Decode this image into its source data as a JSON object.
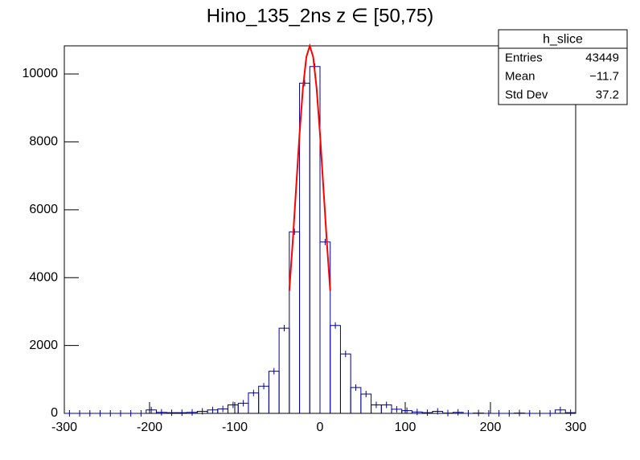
{
  "chart_data": {
    "type": "histogram",
    "title": "Hino_135_2ns z  ∈ [50,75)",
    "bins": [
      -300,
      -288,
      -276,
      -264,
      -252,
      -240,
      -228,
      -216,
      -204,
      -192,
      -180,
      -168,
      -156,
      -144,
      -132,
      -120,
      -108,
      -96,
      -84,
      -72,
      -60,
      -48,
      -36,
      -24,
      -12,
      0,
      12,
      24,
      36,
      48,
      60,
      72,
      84,
      96,
      108,
      120,
      132,
      144,
      156,
      168,
      180,
      192,
      204,
      216,
      228,
      240,
      252,
      264,
      276,
      288,
      300
    ],
    "values": [
      0,
      0,
      0,
      0,
      0,
      0,
      0,
      0,
      100,
      30,
      20,
      20,
      30,
      60,
      100,
      130,
      250,
      300,
      600,
      800,
      1240,
      2510,
      5350,
      9730,
      10220,
      5050,
      2590,
      1750,
      760,
      570,
      250,
      250,
      120,
      80,
      40,
      20,
      60,
      10,
      30,
      0,
      10,
      0,
      0,
      0,
      10,
      0,
      0,
      0,
      100,
      20
    ],
    "color": "#000099",
    "fit": {
      "color": "#ff0000",
      "x": [
        -36,
        -32,
        -28,
        -24,
        -20,
        -16,
        -12,
        -8,
        -4,
        0,
        4,
        8,
        12
      ],
      "values": [
        3615,
        5055,
        6650,
        8233,
        9588,
        10505,
        10830,
        10505,
        9588,
        8233,
        6650,
        5055,
        3615
      ]
    },
    "xlim": [
      -300,
      300
    ],
    "xticks": [
      -300,
      -200,
      -100,
      0,
      100,
      200,
      300
    ],
    "ylim": [
      0,
      10830
    ],
    "yticks": [
      0,
      2000,
      4000,
      6000,
      8000,
      10000
    ],
    "stats": {
      "title": "h_slice",
      "rows": [
        [
          "Entries",
          "43449"
        ],
        [
          "Mean",
          "−11.7"
        ],
        [
          "Std Dev",
          "37.2"
        ]
      ]
    }
  }
}
